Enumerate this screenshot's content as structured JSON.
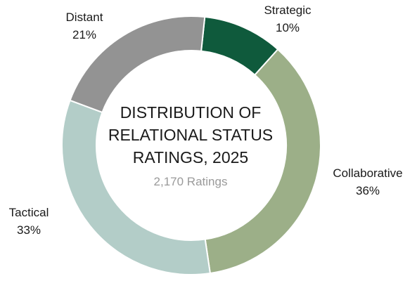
{
  "chart_data": {
    "type": "pie",
    "variant": "donut",
    "title_lines": [
      "DISTRIBUTION OF",
      "RELATIONAL STATUS",
      "RATINGS, 2025"
    ],
    "subtitle": "2,170 Ratings",
    "legend": "none",
    "slices": [
      {
        "label": "Strategic",
        "value": 10,
        "value_label": "10%",
        "color": "#0f5a3c"
      },
      {
        "label": "Collaborative",
        "value": 36,
        "value_label": "36%",
        "color": "#9caf88"
      },
      {
        "label": "Tactical",
        "value": 33,
        "value_label": "33%",
        "color": "#b3cdc8"
      },
      {
        "label": "Distant",
        "value": 21,
        "value_label": "21%",
        "color": "#939393"
      }
    ]
  }
}
